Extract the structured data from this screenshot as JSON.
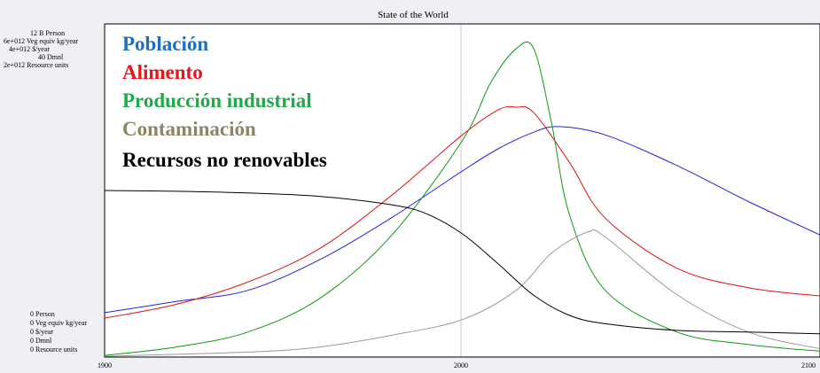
{
  "chart_data": {
    "type": "line",
    "title": "State of the World",
    "xlim": [
      1900,
      2100
    ],
    "x_ticks": [
      "1900",
      "2000",
      "2100"
    ],
    "grid": "vertical line at 2000",
    "axis_labels_top": [
      "12 B  Person",
      "6e+012  Veg equiv kg/year",
      "4e+012  $/year",
      "40  Dmnl",
      "2e+012  Resource units"
    ],
    "axis_labels_bottom": [
      "0  Person",
      "0  Veg equiv kg/year",
      "0  $/year",
      "0  Dmnl",
      "0  Resource units"
    ],
    "annotations": [
      {
        "text": "Población",
        "color": "#1f6fbf"
      },
      {
        "text": "Alimento",
        "color": "#e8141a"
      },
      {
        "text": "Producción industrial",
        "color": "#1faa4a"
      },
      {
        "text": "Contaminación",
        "color": "#8c8466"
      },
      {
        "text": "Recursos no renovables",
        "color": "#000000"
      }
    ],
    "series": [
      {
        "color": "#2020e0",
        "ymax": 12,
        "unit": "B Person",
        "x": [
          1900,
          1920,
          1940,
          1960,
          1980,
          2000,
          2010,
          2020,
          2027,
          2040,
          2060,
          2080,
          2100
        ],
        "values": [
          1.6,
          2.0,
          2.4,
          3.5,
          5.0,
          6.7,
          7.5,
          8.1,
          8.3,
          8.0,
          6.9,
          5.6,
          4.4
        ]
      },
      {
        "color": "#e01010",
        "ymax": 6000000000000.0,
        "unit": "Veg equiv kg/year",
        "x": [
          1900,
          1920,
          1940,
          1960,
          1980,
          2000,
          2010,
          2015,
          2020,
          2030,
          2040,
          2060,
          2080,
          2100
        ],
        "values": [
          700000000000.0,
          950000000000.0,
          1350000000000.0,
          1950000000000.0,
          2900000000000.0,
          4000000000000.0,
          4450000000000.0,
          4500000000000.0,
          4400000000000.0,
          3500000000000.0,
          2500000000000.0,
          1600000000000.0,
          1250000000000.0,
          1100000000000.0
        ]
      },
      {
        "color": "#119911",
        "ymax": 4000000000000.0,
        "unit": "$/year",
        "x": [
          1900,
          1920,
          1940,
          1960,
          1980,
          2000,
          2008,
          2015,
          2020,
          2025,
          2030,
          2040,
          2060,
          2080,
          2100
        ],
        "values": [
          20000000000.0,
          120000000000.0,
          300000000000.0,
          700000000000.0,
          1450000000000.0,
          2600000000000.0,
          3300000000000.0,
          3700000000000.0,
          3700000000000.0,
          2800000000000.0,
          1700000000000.0,
          800000000000.0,
          300000000000.0,
          150000000000.0,
          70000000000.0
        ]
      },
      {
        "color": "#999999",
        "ymax": 40,
        "unit": "Dmnl",
        "x": [
          1900,
          1940,
          1960,
          1980,
          2000,
          2015,
          2025,
          2035,
          2040,
          2060,
          2080,
          2100
        ],
        "values": [
          0.1,
          0.6,
          1.2,
          2.6,
          4.5,
          8.0,
          12.5,
          15.0,
          14.4,
          7.5,
          3.0,
          1.0
        ]
      },
      {
        "color": "#000000",
        "ymax": 2000000000000.0,
        "unit": "Resource units",
        "x": [
          1900,
          1920,
          1940,
          1960,
          1980,
          1990,
          2000,
          2010,
          2020,
          2030,
          2040,
          2060,
          2080,
          2100
        ],
        "values": [
          1000000000000.0,
          995000000000.0,
          985000000000.0,
          965000000000.0,
          915000000000.0,
          860000000000.0,
          740000000000.0,
          560000000000.0,
          370000000000.0,
          250000000000.0,
          200000000000.0,
          160000000000.0,
          150000000000.0,
          140000000000.0
        ]
      }
    ]
  },
  "colors": {
    "page_background": "#eef0f4",
    "plot_background": "#ffffff",
    "frame": "#000000",
    "gridline": "#c8c8c8"
  }
}
